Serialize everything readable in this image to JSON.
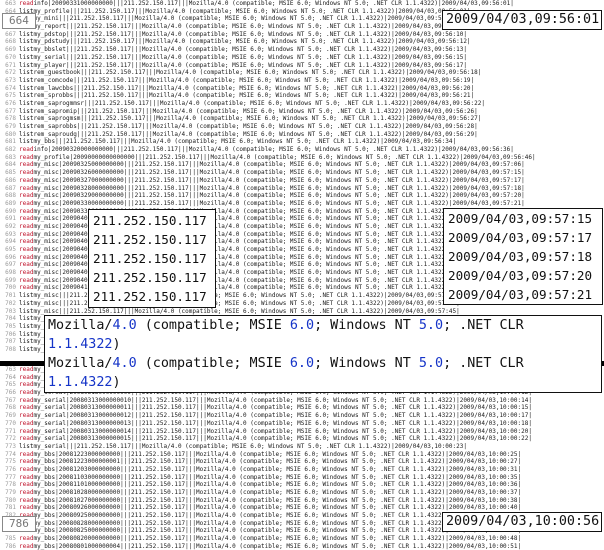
{
  "log_top": [
    {
      "n": "663",
      "c": "read",
      "t": "info|20090331000000000|||211.252.150.117|||Mozilla/4.0 (compatible; MSIE 6.0; Windows NT 5.0; .NET CLR 1.1.4322)|2009/04/03,09:56:01|"
    },
    {
      "n": "664",
      "c": "list",
      "t": "my_profile|||211.252.150.117|||Mozilla/4.0 (compatible; MSIE 6.0; Windows NT 5.0; .NET CLR 1.1.4322)|2009/04/03,09:56:01|"
    },
    {
      "n": "665",
      "c": "list",
      "t": "my_mini|||211.252.150.117|||Mozilla/4.0 (compatible; MSIE 6.0; Windows NT 5.0; .NET CLR 1.1.4322)|2009/04/03,09:56:05|"
    },
    {
      "n": "666",
      "c": "list",
      "t": "my_report|||211.252.150.117|||Mozilla/4.0 (compatible; MSIE 6.0; Windows NT 5.0; .NET CLR 1.1.4322)|2009/04/03,09:56:08|"
    },
    {
      "n": "667",
      "c": "list",
      "t": "my_pdstop|||211.252.150.117|||Mozilla/4.0 (compatible; MSIE 6.0; Windows NT 5.0; .NET CLR 1.1.4322)|2009/04/03,09:56:10|"
    },
    {
      "n": "668",
      "c": "list",
      "t": "my_pdstudy|||211.252.150.117|||Mozilla/4.0 (compatible; MSIE 6.0; Windows NT 5.0; .NET CLR 1.1.4322)|2009/04/03,09:56:12|"
    },
    {
      "n": "669",
      "c": "list",
      "t": "my_bbslet|||211.252.150.117|||Mozilla/4.0 (compatible; MSIE 6.0; Windows NT 5.0; .NET CLR 1.1.4322)|2009/04/03,09:56:13|"
    },
    {
      "n": "670",
      "c": "list",
      "t": "my_serial|||211.252.150.117|||Mozilla/4.0 (compatible; MSIE 6.0; Windows NT 5.0; .NET CLR 1.1.4322)|2009/04/03,09:56:15|"
    },
    {
      "n": "671",
      "c": "list",
      "t": "my_player|||211.252.150.117|||Mozilla/4.0 (compatible; MSIE 6.0; Windows NT 5.0; .NET CLR 1.1.4322)|2009/04/03,09:56:17|"
    },
    {
      "n": "672",
      "c": "list",
      "t": "rem_guestbook|||211.252.150.117|||Mozilla/4.0 (compatible; MSIE 6.0; Windows NT 5.0; .NET CLR 1.1.4322)|2009/04/03,09:56:18|"
    },
    {
      "n": "673",
      "c": "list",
      "t": "rem_comcode|||211.252.150.117|||Mozilla/4.0 (compatible; MSIE 6.0; Windows NT 5.0; .NET CLR 1.1.4322)|2009/04/03,09:56:19|"
    },
    {
      "n": "674",
      "c": "list",
      "t": "rem_lawcbbs|||211.252.150.117|||Mozilla/4.0 (compatible; MSIE 6.0; Windows NT 5.0; .NET CLR 1.1.4322)|2009/04/03,09:56:20|"
    },
    {
      "n": "675",
      "c": "list",
      "t": "rem_sprobbs|||211.252.150.117|||Mozilla/4.0 (compatible; MSIE 6.0; Windows NT 5.0; .NET CLR 1.1.4322)|2009/04/03,09:56:21|"
    },
    {
      "n": "676",
      "c": "list",
      "t": "rem_saprogmmsr|||211.252.150.117|||Mozilla/4.0 (compatible; MSIE 6.0; Windows NT 5.0; .NET CLR 1.1.4322)|2009/04/03,09:56:22|"
    },
    {
      "n": "677",
      "c": "list",
      "t": "rem_sapromip|||211.252.150.117|||Mozilla/4.0 (compatible; MSIE 6.0; Windows NT 5.0; .NET CLR 1.1.4322)|2009/04/03,09:56:26|"
    },
    {
      "n": "678",
      "c": "list",
      "t": "rem_saprogmsm|||211.252.150.117|||Mozilla/4.0 (compatible; MSIE 6.0; Windows NT 5.0; .NET CLR 1.1.4322)|2009/04/03,09:56:27|"
    },
    {
      "n": "679",
      "c": "list",
      "t": "rem_saprobbs|||211.252.150.117|||Mozilla/4.0 (compatible; MSIE 6.0; Windows NT 5.0; .NET CLR 1.1.4322)|2009/04/03,09:56:28|"
    },
    {
      "n": "680",
      "c": "list",
      "t": "rem_saproudg|||211.252.150.117|||Mozilla/4.0 (compatible; MSIE 6.0; Windows NT 5.0; .NET CLR 1.1.4322)|2009/04/03,09:56:29|"
    },
    {
      "n": "681",
      "c": "list",
      "t": "my_bbs|||211.252.150.117|||Mozilla/4.0 (compatible; MSIE 6.0; Windows NT 5.0; .NET CLR 1.1.4322)|2009/04/03,09:56:34|"
    },
    {
      "n": "682",
      "c": "read",
      "t": "info|20090320000000000|||211.252.150.117|||Mozilla/4.0 (compatible; MSIE 6.0; Windows NT 5.0; .NET CLR 1.1.4322)|2009/04/03,09:56:36|"
    },
    {
      "n": "683",
      "c": "read",
      "t": "my_profile|20090000000000000|||211.252.150.117|||Mozilla/4.0 (compatible; MSIE 6.0; Windows NT 5.0; .NET CLR 1.1.4322)|2009/04/03,09:56:46|"
    },
    {
      "n": "684",
      "c": "read",
      "t": "my_misc|20090325000000000|||211.252.150.117|||Mozilla/4.0 (compatible; MSIE 6.0; Windows NT 5.0; .NET CLR 1.1.4322)|2009/04/03,09:57:06|"
    },
    {
      "n": "685",
      "c": "read",
      "t": "my_misc|20090326000000000|||211.252.150.117|||Mozilla/4.0 (compatible; MSIE 6.0; Windows NT 5.0; .NET CLR 1.1.4322)|2009/04/03,09:57:15|"
    },
    {
      "n": "686",
      "c": "read",
      "t": "my_misc|20090327000000000|||211.252.150.117|||Mozilla/4.0 (compatible; MSIE 6.0; Windows NT 5.0; .NET CLR 1.1.4322)|2009/04/03,09:57:17|"
    },
    {
      "n": "687",
      "c": "read",
      "t": "my_misc|20090328000000000|||211.252.150.117|||Mozilla/4.0 (compatible; MSIE 6.0; Windows NT 5.0; .NET CLR 1.1.4322)|2009/04/03,09:57:18|"
    },
    {
      "n": "688",
      "c": "read",
      "t": "my_misc|20090329000000000|||211.252.150.117|||Mozilla/4.0 (compatible; MSIE 6.0; Windows NT 5.0; .NET CLR 1.1.4322)|2009/04/03,09:57:20|"
    },
    {
      "n": "689",
      "c": "read",
      "t": "my_misc|20090330000000000|||211.252.150.117|||Mozilla/4.0 (compatible; MSIE 6.0; Windows NT 5.0; .NET CLR 1.1.4322)|2009/04/03,09:57:21|"
    },
    {
      "n": "690",
      "c": "read",
      "t": "my_misc|20090331000000000|||211.252.150.117|||Mozilla/4.0 (compatible; MSIE 6.0; Windows NT 5.0; .NET CLR 1.1.4322)|2009/04/03,09:57:23|"
    },
    {
      "n": "691",
      "c": "read",
      "t": "my_misc|20090401000000000|||211.252.150.117|||Mozilla/4.0 (compatible; MSIE 6.0; Windows NT 5.0; .NET CLR 1.1.4322)|2009/04/03,09:57:25|"
    },
    {
      "n": "692",
      "c": "read",
      "t": "my_misc|20090402000000000|||211.252.150.117|||Mozilla/4.0 (compatible; MSIE 6.0; Windows NT 5.0; .NET CLR 1.1.4322)|2009/04/03,09:57:26|"
    },
    {
      "n": "693",
      "c": "read",
      "t": "my_misc|20090403000000000|||211.252.150.117|||Mozilla/4.0 (compatible; MSIE 6.0; Windows NT 5.0; .NET CLR 1.1.4322)|2009/04/03,09:57:28|"
    },
    {
      "n": "694",
      "c": "read",
      "t": "my_misc|20090404000000000|||211.252.150.117|||Mozilla/4.0 (compatible; MSIE 6.0; Windows NT 5.0; .NET CLR 1.1.4322)|2009/04/03,09:57:30|"
    },
    {
      "n": "695",
      "c": "read",
      "t": "my_misc|20090405000000000|||211.252.150.117|||Mozilla/4.0 (compatible; MSIE 6.0; Windows NT 5.0; .NET CLR 1.1.4322)|2009/04/03,09:57:31|"
    },
    {
      "n": "696",
      "c": "read",
      "t": "my_misc|20090406000000000|||211.252.150.117|||Mozilla/4.0 (compatible; MSIE 6.0; Windows NT 5.0; .NET CLR 1.1.4322)|2009/04/03,09:57:33|"
    },
    {
      "n": "697",
      "c": "read",
      "t": "my_misc|20090407000000000|||211.252.150.117|||Mozilla/4.0 (compatible; MSIE 6.0; Windows NT 5.0; .NET CLR 1.1.4322)|2009/04/03,09:57:35|"
    },
    {
      "n": "698",
      "c": "read",
      "t": "my_misc|20090408000000000|||211.252.150.117|||Mozilla/4.0 (compatible; MSIE 6.0; Windows NT 5.0; .NET CLR 1.1.4322)|2009/04/03,09:57:37|"
    },
    {
      "n": "699",
      "c": "read",
      "t": "my_misc|20090409000000000|||211.252.150.117|||Mozilla/4.0 (compatible; MSIE 6.0; Windows NT 5.0; .NET CLR 1.1.4322)|2009/04/03,09:57:38|"
    },
    {
      "n": "700",
      "c": "read",
      "t": "my_misc|20090410000000000|||211.252.150.117|||Mozilla/4.0 (compatible; MSIE 6.0; Windows NT 5.0; .NET CLR 1.1.4322)|2009/04/03,09:57:40|"
    },
    {
      "n": "701",
      "c": "list",
      "t": "my_misc|||211.252.150.117|||Mozilla/4.0 (compatible; MSIE 6.0; Windows NT 5.0; .NET CLR 1.1.4322)|2009/04/03,09:57:42|"
    },
    {
      "n": "702",
      "c": "list",
      "t": "my_misc|||211.252.150.117|||Mozilla/4.0 (compatible; MSIE 6.0; Windows NT 5.0; .NET CLR 1.1.4322)|2009/04/03,09:57:44|"
    },
    {
      "n": "703",
      "c": "list",
      "t": "my_misc|||211.252.150.117|||Mozilla/4.0 (compatible; MSIE 6.0; Windows NT 5.0; .NET CLR 1.1.4322)|2009/04/03,09:57:45|"
    },
    {
      "n": "704",
      "c": "list",
      "t": "my_misc|||211.252.150.117|||Mozilla/4.0 (compatible; MSIE 6.0; Windows NT 5.0; .NET CLR 1.1.4322)|2009/04/03,09:57:47|"
    },
    {
      "n": "705",
      "c": "list",
      "t": "my_misc|||211.252.150.117|||Mozilla/4.0 (compatible; MSIE 6.0; Windows NT 5.0; .NET CLR 1.1.4322)|2009/04/03,09:57:49|"
    },
    {
      "n": "706",
      "c": "list",
      "t": "my_misc|||211.252.150.117|||Mozilla/4.0 (compatible; MSIE 6.0; Windows NT 5.0; .NET CLR 1.1.4322)|2009/04/03,09:57:51|"
    },
    {
      "n": "707",
      "c": "list",
      "t": "my_misc|||211.252.150.117|||Mozilla/4.0 (compatible; MSIE 6.0; Windows NT 5.0; .NET CLR 1.1.4322)|2009/04/03,09:57:53|"
    },
    {
      "n": "708",
      "c": "list",
      "t": "my_misc|||211.252.150.117|||Mozilla/4.0 (compatible; MSIE 6.0; Windows NT 5.0; .NET CLR 1.1.4322)|2009/04/03,09:57:55|"
    }
  ],
  "log_bottom": [
    {
      "n": "763",
      "c": "read",
      "t": "my_serial|20080313000000006|||211.252.150.117|||Mozilla/4.0 (compatible; MSIE 6.0; Windows NT 5.0; .NET CLR 1.1.4322)|2009/04/03,10:00:08|"
    },
    {
      "n": "764",
      "c": "read",
      "t": "my_serial|20080313000000007|||211.252.150.117|||Mozilla/4.0 (compatible; MSIE 6.0; Windows NT 5.0; .NET CLR 1.1.4322)|2009/04/03,10:00:09|"
    },
    {
      "n": "765",
      "c": "read",
      "t": "my_serial|20080313000000008|||211.252.150.117|||Mozilla/4.0 (compatible; MSIE 6.0; Windows NT 5.0; .NET CLR 1.1.4322)|2009/04/03,10:00:11|"
    },
    {
      "n": "766",
      "c": "read",
      "t": "my_serial|20080313000000009|||211.252.150.117|||Mozilla/4.0 (compatible; MSIE 6.0; Windows NT 5.0; .NET CLR 1.1.4322)|2009/04/03,10:00:12|"
    },
    {
      "n": "767",
      "c": "read",
      "t": "my_serial|20080313000000010|||211.252.150.117|||Mozilla/4.0 (compatible; MSIE 6.0; Windows NT 5.0; .NET CLR 1.1.4322)|2009/04/03,10:00:14|"
    },
    {
      "n": "768",
      "c": "read",
      "t": "my_serial|20080313000000011|||211.252.150.117|||Mozilla/4.0 (compatible; MSIE 6.0; Windows NT 5.0; .NET CLR 1.1.4322)|2009/04/03,10:00:15|"
    },
    {
      "n": "769",
      "c": "read",
      "t": "my_serial|20080313000000012|||211.252.150.117|||Mozilla/4.0 (compatible; MSIE 6.0; Windows NT 5.0; .NET CLR 1.1.4322)|2009/04/03,10:00:17|"
    },
    {
      "n": "770",
      "c": "read",
      "t": "my_serial|20080313000000013|||211.252.150.117|||Mozilla/4.0 (compatible; MSIE 6.0; Windows NT 5.0; .NET CLR 1.1.4322)|2009/04/03,10:00:18|"
    },
    {
      "n": "771",
      "c": "read",
      "t": "my_serial|20080313000000014|||211.252.150.117|||Mozilla/4.0 (compatible; MSIE 6.0; Windows NT 5.0; .NET CLR 1.1.4322)|2009/04/03,10:00:20|"
    },
    {
      "n": "772",
      "c": "read",
      "t": "my_serial|20080313000000015|||211.252.150.117|||Mozilla/4.0 (compatible; MSIE 6.0; Windows NT 5.0; .NET CLR 1.1.4322)|2009/04/03,10:00:22|"
    },
    {
      "n": "773",
      "c": "list",
      "t": "my_serial|||211.252.150.117|||Mozilla/4.0 (compatible; MSIE 6.0; Windows NT 5.0; .NET CLR 1.1.4322)|2009/04/03,10:00:23|"
    },
    {
      "n": "774",
      "c": "read",
      "t": "my_bbs|20081223000000000|||211.252.150.117|||Mozilla/4.0 (compatible; MSIE 6.0; Windows NT 5.0; .NET CLR 1.1.4322)|2009/04/03,10:00:25|"
    },
    {
      "n": "775",
      "c": "read",
      "t": "my_bbs|20081223000000001|||211.252.150.117|||Mozilla/4.0 (compatible; MSIE 6.0; Windows NT 5.0; .NET CLR 1.1.4322)|2009/04/03,10:00:27|"
    },
    {
      "n": "776",
      "c": "read",
      "t": "my_bbs|20081203000000000|||211.252.150.117|||Mozilla/4.0 (compatible; MSIE 6.0; Windows NT 5.0; .NET CLR 1.1.4322)|2009/04/03,10:00:31|"
    },
    {
      "n": "777",
      "c": "read",
      "t": "my_bbs|20081103000000000|||211.252.150.117|||Mozilla/4.0 (compatible; MSIE 6.0; Windows NT 5.0; .NET CLR 1.1.4322)|2009/04/03,10:00:35|"
    },
    {
      "n": "778",
      "c": "read",
      "t": "my_bbs|20081101000000000|||211.252.150.117|||Mozilla/4.0 (compatible; MSIE 6.0; Windows NT 5.0; .NET CLR 1.1.4322)|2009/04/03,10:00:36|"
    },
    {
      "n": "779",
      "c": "read",
      "t": "my_bbs|20081028000000000|||211.252.150.117|||Mozilla/4.0 (compatible; MSIE 6.0; Windows NT 5.0; .NET CLR 1.1.4322)|2009/04/03,10:00:37|"
    },
    {
      "n": "780",
      "c": "read",
      "t": "my_bbs|20081027000000000|||211.252.150.117|||Mozilla/4.0 (compatible; MSIE 6.0; Windows NT 5.0; .NET CLR 1.1.4322)|2009/04/03,10:00:38|"
    },
    {
      "n": "781",
      "c": "read",
      "t": "my_bbs|20080926000000000|||211.252.150.117|||Mozilla/4.0 (compatible; MSIE 6.0; Windows NT 5.0; .NET CLR 1.1.4322)|2009/04/03,10:00:40|"
    },
    {
      "n": "782",
      "c": "read",
      "t": "my_bbs|20080925000000000|||211.252.150.117|||Mozilla/4.0 (compatible; MSIE 6.0; Windows NT 5.0; .NET CLR 1.1.4322)|2009/04/03,10:00:42|"
    },
    {
      "n": "783",
      "c": "read",
      "t": "my_bbs|20080828000000000|||211.252.150.117|||Mozilla/4.0 (compatible; MSIE 6.0; Windows NT 5.0; .NET CLR 1.1.4322)|2009/04/03,10:00:44|"
    },
    {
      "n": "784",
      "c": "read",
      "t": "my_bbs|20080825000000000|||211.252.150.117|||Mozilla/4.0 (compatible; MSIE 6.0; Windows NT 5.0; .NET CLR 1.1.4322)|2009/04/03,10:00:47|"
    },
    {
      "n": "785",
      "c": "read",
      "t": "my_bbs|20080820000000000|||211.252.150.117|||Mozilla/4.0 (compatible; MSIE 6.0; Windows NT 5.0; .NET CLR 1.1.4322)|2009/04/03,10:00:48|"
    },
    {
      "n": "786",
      "c": "read",
      "t": "my_bbs|20080801000000004|||211.252.150.117|||Mozilla/4.0 (compatible; MSIE 6.0; Windows NT 5.0; .NET CLR 1.1.4322)|2009/04/03,10:00:51|"
    },
    {
      "n": "787",
      "c": "read",
      "t": "my_bbs|20080801000000005|||211.252.150.117|||Mozilla/4.0 (compatible; MSIE 6.0; Windows NT 5.0; .NET CLR 1.1.4322)|2009/04/03,10:00:53|"
    },
    {
      "n": "788",
      "c": "list",
      "t": "my_bbs|||211.252.150.117|||Mozilla/4.0 (compatible; MSIE 6.0; Windows NT 5.0; .NET CLR 1.1.4322)|2009/04/03,10:00:56|"
    }
  ],
  "callouts": {
    "line_top": "664",
    "line_bottom": "786",
    "ts_top": "2009/04/03,09:56:01",
    "ts_bottom": "2009/04/03,10:00:56",
    "ips": [
      "211.252.150.117",
      "211.252.150.117",
      "211.252.150.117",
      "211.252.150.117",
      "211.252.150.117"
    ],
    "timestamps": [
      "2009/04/03,09:57:15",
      "2009/04/03,09:57:17",
      "2009/04/03,09:57:18",
      "2009/04/03,09:57:20",
      "2009/04/03,09:57:21"
    ],
    "ua_lines": [
      {
        "a": "Mozilla/",
        "b": "4.0",
        "c": " (compatible; MSIE ",
        "d": "6.0",
        "e": "; Windows NT ",
        "f": "5.0",
        "g": "; .NET CLR ",
        "h": "1.1.4322",
        "i": ")"
      },
      {
        "a": "Mozilla/",
        "b": "4.0",
        "c": " (compatible; MSIE ",
        "d": "6.0",
        "e": "; Windows NT ",
        "f": "5.0",
        "g": "; .NET CLR ",
        "h": "1.1.4322",
        "i": ")"
      }
    ]
  }
}
